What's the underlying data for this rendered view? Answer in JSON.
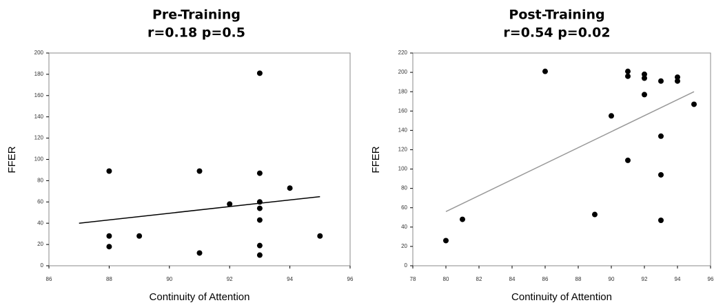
{
  "chart_data": [
    {
      "type": "scatter",
      "title": "Pre-Training",
      "subtitle": "r=0.18 p=0.5",
      "x_label": "Continuity of Attention",
      "y_label": "FFER",
      "xlim": [
        86,
        96
      ],
      "xticks": [
        86,
        88,
        90,
        92,
        94,
        96
      ],
      "ylim": [
        0,
        200
      ],
      "yticks": [
        0,
        20,
        40,
        60,
        80,
        100,
        120,
        140,
        160,
        180,
        200
      ],
      "color": "#000000",
      "x": [
        88,
        88,
        88,
        89,
        91,
        91,
        92,
        93,
        93,
        93,
        93,
        93,
        93,
        93,
        94,
        95
      ],
      "values": [
        89,
        28,
        18,
        28,
        89,
        12,
        58,
        181,
        87,
        60,
        54,
        43,
        19,
        10,
        73,
        28
      ],
      "fit": {
        "color": "#000000",
        "x": [
          87,
          95
        ],
        "values": [
          40,
          65
        ]
      }
    },
    {
      "type": "scatter",
      "title": "Post-Training",
      "subtitle": "r=0.54 p=0.02",
      "x_label": "Continuity of Attention",
      "y_label": "FFER",
      "xlim": [
        78,
        96
      ],
      "xticks": [
        78,
        80,
        82,
        84,
        86,
        88,
        90,
        92,
        94,
        96
      ],
      "ylim": [
        0,
        220
      ],
      "yticks": [
        0,
        20,
        40,
        60,
        80,
        100,
        120,
        140,
        160,
        180,
        200,
        220
      ],
      "color": "#000000",
      "x": [
        80,
        81,
        86,
        89,
        90,
        91,
        91,
        91,
        92,
        92,
        92,
        93,
        93,
        93,
        93,
        94,
        94,
        95
      ],
      "values": [
        26,
        48,
        201,
        53,
        155,
        201,
        196,
        109,
        198,
        194,
        177,
        191,
        134,
        94,
        47,
        195,
        191,
        167
      ],
      "fit": {
        "color": "#999999",
        "x": [
          80,
          95
        ],
        "values": [
          56,
          180
        ]
      }
    }
  ]
}
